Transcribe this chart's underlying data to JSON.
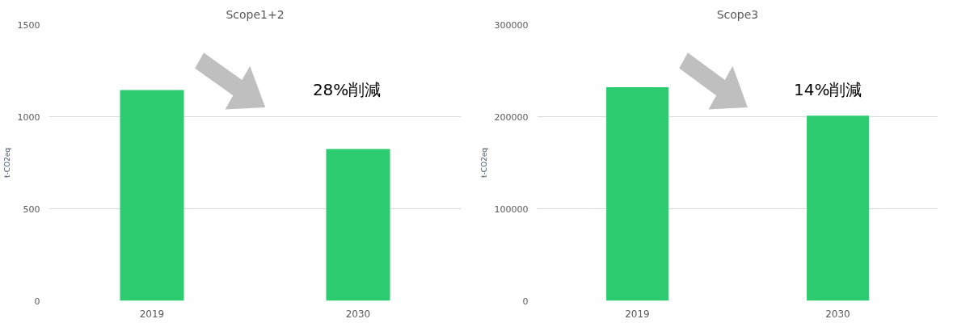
{
  "chart_data": [
    {
      "type": "bar",
      "title": "Scope1+2",
      "ylabel": "t-CO2eq",
      "categories": [
        "2019",
        "2030"
      ],
      "values": [
        1145,
        825
      ],
      "color": "#2ecc71",
      "ylim": [
        0,
        1500
      ],
      "yticks": [
        0,
        500,
        1000,
        1500
      ],
      "grid": "y",
      "annotations": [
        "28%削減"
      ]
    },
    {
      "type": "bar",
      "title": "Scope3",
      "ylabel": "t-CO2eq",
      "categories": [
        "2019",
        "2030"
      ],
      "values": [
        232000,
        201000
      ],
      "color": "#2ecc71",
      "ylim": [
        0,
        300000
      ],
      "yticks": [
        0,
        100000,
        200000,
        300000
      ],
      "grid": "y",
      "annotations": [
        "14%削減"
      ]
    }
  ]
}
